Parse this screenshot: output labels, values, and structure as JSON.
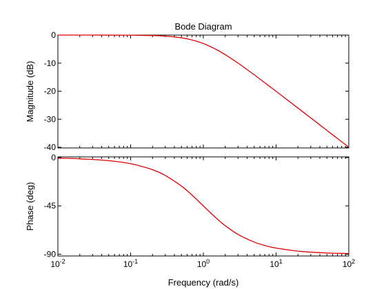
{
  "chart_data": {
    "type": "line",
    "title": "Bode Diagram",
    "xlabel": "Frequency  (rad/s)",
    "x_scale": "log",
    "xlim": [
      0.01,
      100
    ],
    "x_ticks": [
      {
        "value": 0.01,
        "base": "10",
        "exp": "-2"
      },
      {
        "value": 0.1,
        "base": "10",
        "exp": "-1"
      },
      {
        "value": 1,
        "base": "10",
        "exp": "0"
      },
      {
        "value": 10,
        "base": "10",
        "exp": "1"
      },
      {
        "value": 100,
        "base": "10",
        "exp": "2"
      }
    ],
    "line_color": "#e00000",
    "grid": false,
    "panels": [
      {
        "ylabel": "Magnitude (dB)",
        "ylim": [
          -40,
          0
        ],
        "y_ticks": [
          {
            "value": 0,
            "label": "0"
          },
          {
            "value": -10,
            "label": "-10"
          },
          {
            "value": -20,
            "label": "-20"
          },
          {
            "value": -30,
            "label": "-30"
          },
          {
            "value": -40,
            "label": "-40"
          }
        ],
        "series": [
          {
            "x": [
              0.01,
              0.02,
              0.05,
              0.1,
              0.2,
              0.3,
              0.5,
              0.7,
              1,
              1.5,
              2,
              3,
              5,
              7,
              10,
              20,
              30,
              50,
              70,
              100
            ],
            "y": [
              0,
              -0.002,
              -0.011,
              -0.04,
              -0.17,
              -0.37,
              -0.97,
              -1.74,
              -3.01,
              -5.12,
              -6.99,
              -10.0,
              -14.15,
              -17.0,
              -20.04,
              -26.03,
              -29.54,
              -33.98,
              -36.9,
              -40.0
            ]
          }
        ]
      },
      {
        "ylabel": "Phase (deg)",
        "ylim": [
          -91,
          0
        ],
        "y_ticks": [
          {
            "value": 0,
            "label": "0"
          },
          {
            "value": -45,
            "label": "-45"
          },
          {
            "value": -90,
            "label": "-90"
          }
        ],
        "series": [
          {
            "x": [
              0.01,
              0.02,
              0.05,
              0.1,
              0.2,
              0.3,
              0.5,
              0.7,
              1,
              1.5,
              2,
              3,
              5,
              7,
              10,
              20,
              30,
              50,
              70,
              100
            ],
            "y": [
              -0.57,
              -1.15,
              -2.86,
              -5.71,
              -11.31,
              -16.7,
              -26.57,
              -34.99,
              -45.0,
              -56.31,
              -63.43,
              -71.57,
              -78.69,
              -81.87,
              -84.29,
              -87.14,
              -88.09,
              -88.85,
              -89.18,
              -89.43
            ]
          }
        ]
      }
    ]
  }
}
